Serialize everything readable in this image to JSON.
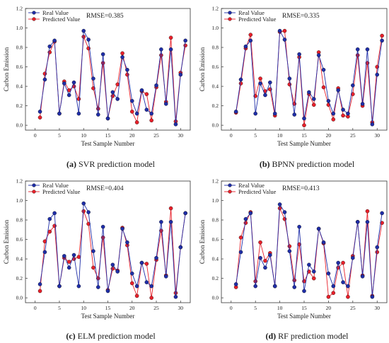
{
  "chart_data": [
    {
      "type": "line",
      "caption": {
        "letter": "(a)",
        "text": " SVR prediction model"
      },
      "rmse_label": "RMSE=0.385",
      "xlabel": "Test Sample Number",
      "ylabel": "Carbon Emission",
      "xlim": [
        -2,
        32
      ],
      "ylim": [
        -0.05,
        1.2
      ],
      "xticks": [
        0,
        5,
        10,
        15,
        20,
        25,
        30
      ],
      "yticks": [
        0.0,
        0.2,
        0.4,
        0.6,
        0.8,
        1.0,
        1.2
      ],
      "legend_position": "top-left",
      "x": [
        1,
        2,
        3,
        4,
        5,
        6,
        7,
        8,
        9,
        10,
        11,
        12,
        13,
        14,
        15,
        16,
        17,
        18,
        19,
        20,
        21,
        22,
        23,
        24,
        25,
        26,
        27,
        28,
        29,
        30,
        31
      ],
      "series": [
        {
          "name": "Real Value",
          "color": "#1f2ea8",
          "values": [
            0.14,
            0.47,
            0.81,
            0.87,
            0.12,
            0.43,
            0.31,
            0.44,
            0.12,
            0.97,
            0.88,
            0.48,
            0.11,
            0.73,
            0.07,
            0.34,
            0.27,
            0.7,
            0.57,
            0.25,
            0.12,
            0.36,
            0.16,
            0.12,
            0.41,
            0.78,
            0.22,
            0.78,
            0.01,
            0.52,
            0.87
          ]
        },
        {
          "name": "Predicted Value",
          "color": "#e8202a",
          "values": [
            0.08,
            0.53,
            0.75,
            0.86,
            0.12,
            0.45,
            0.36,
            0.4,
            0.27,
            0.91,
            0.79,
            0.38,
            0.17,
            0.64,
            0.07,
            0.3,
            0.42,
            0.74,
            0.52,
            0.14,
            0.03,
            0.35,
            0.32,
            0.05,
            0.39,
            0.72,
            0.24,
            0.9,
            0.04,
            0.54,
            0.82
          ]
        }
      ]
    },
    {
      "type": "line",
      "caption": {
        "letter": "(b)",
        "text": " BPNN prediction model"
      },
      "rmse_label": "RMSE=0.335",
      "xlabel": "Test Sample Number",
      "ylabel": "Carbon Emission",
      "xlim": [
        -2,
        32
      ],
      "ylim": [
        -0.05,
        1.2
      ],
      "xticks": [
        0,
        5,
        10,
        15,
        20,
        25,
        30
      ],
      "yticks": [
        0.0,
        0.2,
        0.4,
        0.6,
        0.8,
        1.0,
        1.2
      ],
      "legend_position": "top-left",
      "x": [
        1,
        2,
        3,
        4,
        5,
        6,
        7,
        8,
        9,
        10,
        11,
        12,
        13,
        14,
        15,
        16,
        17,
        18,
        19,
        20,
        21,
        22,
        23,
        24,
        25,
        26,
        27,
        28,
        29,
        30,
        31
      ],
      "series": [
        {
          "name": "Real Value",
          "color": "#1f2ea8",
          "values": [
            0.14,
            0.47,
            0.81,
            0.87,
            0.12,
            0.43,
            0.31,
            0.44,
            0.12,
            0.97,
            0.88,
            0.48,
            0.11,
            0.73,
            0.07,
            0.34,
            0.27,
            0.72,
            0.57,
            0.25,
            0.12,
            0.36,
            0.16,
            0.12,
            0.41,
            0.78,
            0.22,
            0.78,
            0.01,
            0.52,
            0.87
          ]
        },
        {
          "name": "Predicted Value",
          "color": "#e8202a",
          "values": [
            0.13,
            0.43,
            0.79,
            0.93,
            0.3,
            0.48,
            0.35,
            0.37,
            0.1,
            0.96,
            0.97,
            0.42,
            0.22,
            0.7,
            0.0,
            0.32,
            0.21,
            0.75,
            0.39,
            0.21,
            0.06,
            0.38,
            0.1,
            0.09,
            0.32,
            0.72,
            0.2,
            0.64,
            0.03,
            0.6,
            0.92
          ]
        }
      ]
    },
    {
      "type": "line",
      "caption": {
        "letter": "(c)",
        "text": " ELM prediction model"
      },
      "rmse_label": "RMSE=0.404",
      "xlabel": "Test Sample Number",
      "ylabel": "Carbon Emission",
      "xlim": [
        -2,
        32
      ],
      "ylim": [
        -0.05,
        1.2
      ],
      "xticks": [
        0,
        5,
        10,
        15,
        20,
        25,
        30
      ],
      "yticks": [
        0.0,
        0.2,
        0.4,
        0.6,
        0.8,
        1.0,
        1.2
      ],
      "legend_position": "top-left",
      "x": [
        1,
        2,
        3,
        4,
        5,
        6,
        7,
        8,
        9,
        10,
        11,
        12,
        13,
        14,
        15,
        16,
        17,
        18,
        19,
        20,
        21,
        22,
        23,
        24,
        25,
        26,
        27,
        28,
        29,
        30,
        31
      ],
      "series": [
        {
          "name": "Real Value",
          "color": "#1f2ea8",
          "values": [
            0.14,
            0.47,
            0.81,
            0.87,
            0.12,
            0.43,
            0.31,
            0.44,
            0.12,
            0.97,
            0.88,
            0.48,
            0.11,
            0.73,
            0.07,
            0.34,
            0.27,
            0.71,
            0.57,
            0.25,
            0.12,
            0.36,
            0.16,
            0.12,
            0.41,
            0.78,
            0.22,
            0.78,
            0.01,
            0.52,
            0.87
          ]
        },
        {
          "name": "Predicted Value",
          "color": "#e8202a",
          "values": [
            0.07,
            0.58,
            0.68,
            0.74,
            0.12,
            0.41,
            0.37,
            0.4,
            0.42,
            0.89,
            0.76,
            0.31,
            0.2,
            0.62,
            0.08,
            0.3,
            0.28,
            0.72,
            0.54,
            0.15,
            0.02,
            0.36,
            0.35,
            0.0,
            0.39,
            0.69,
            0.23,
            0.92,
            0.05,
            0.52,
            0.87
          ]
        }
      ]
    },
    {
      "type": "line",
      "caption": {
        "letter": "(d)",
        "text": " RF prediction model"
      },
      "rmse_label": "RMSE=0.413",
      "xlabel": "Test Sample Number",
      "ylabel": "Carbon Emission",
      "xlim": [
        -2,
        32
      ],
      "ylim": [
        -0.05,
        1.2
      ],
      "xticks": [
        0,
        5,
        10,
        15,
        20,
        25,
        30
      ],
      "yticks": [
        0.0,
        0.2,
        0.4,
        0.6,
        0.8,
        1.0,
        1.2
      ],
      "legend_position": "top-left",
      "x": [
        1,
        2,
        3,
        4,
        5,
        6,
        7,
        8,
        9,
        10,
        11,
        12,
        13,
        14,
        15,
        16,
        17,
        18,
        19,
        20,
        21,
        22,
        23,
        24,
        25,
        26,
        27,
        28,
        29,
        30,
        31
      ],
      "series": [
        {
          "name": "Real Value",
          "color": "#1f2ea8",
          "values": [
            0.14,
            0.47,
            0.81,
            0.87,
            0.12,
            0.41,
            0.31,
            0.44,
            0.12,
            0.96,
            0.88,
            0.48,
            0.11,
            0.73,
            0.07,
            0.34,
            0.27,
            0.71,
            0.57,
            0.25,
            0.12,
            0.36,
            0.16,
            0.12,
            0.41,
            0.78,
            0.22,
            0.78,
            0.01,
            0.52,
            0.87
          ]
        },
        {
          "name": "Predicted Value",
          "color": "#e8202a",
          "values": [
            0.11,
            0.62,
            0.77,
            0.88,
            0.17,
            0.57,
            0.38,
            0.46,
            0.12,
            0.92,
            0.81,
            0.53,
            0.18,
            0.55,
            0.17,
            0.27,
            0.2,
            0.71,
            0.56,
            0.01,
            0.05,
            0.31,
            0.36,
            0.01,
            0.43,
            0.78,
            0.23,
            0.89,
            0.02,
            0.47,
            0.77
          ]
        }
      ]
    }
  ]
}
